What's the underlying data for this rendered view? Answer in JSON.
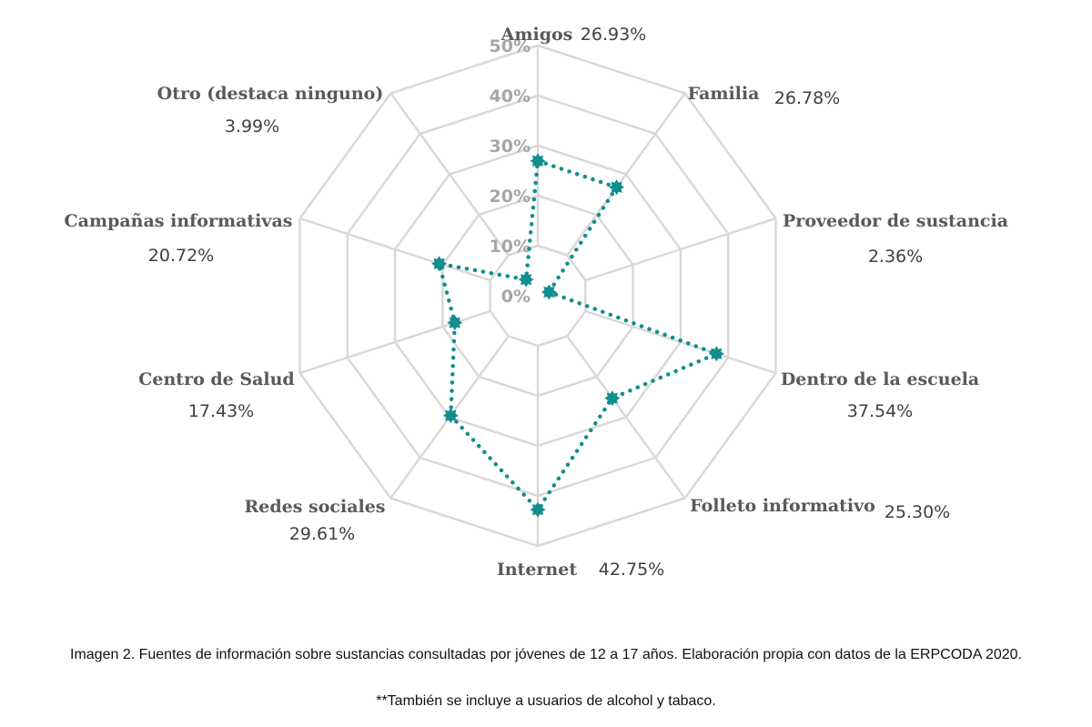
{
  "chart_data": {
    "type": "radar",
    "categories": [
      "Amigos",
      "Familia",
      "Proveedor de sustancia",
      "Dentro de la escuela",
      "Folleto informativo",
      "Internet",
      "Redes sociales",
      "Centro de Salud",
      "Campañas informativas",
      "Otro (destaca ninguno)"
    ],
    "values": [
      26.93,
      26.78,
      2.36,
      37.54,
      25.3,
      42.75,
      29.61,
      17.43,
      20.72,
      3.99
    ],
    "value_labels": [
      "26.93%",
      "26.78%",
      "2.36%",
      "37.54%",
      "25.30%",
      "42.75%",
      "29.61%",
      "17.43%",
      "20.72%",
      "3.99%"
    ],
    "rlim": [
      0,
      50
    ],
    "ticks": [
      0,
      10,
      20,
      30,
      40,
      50
    ],
    "tick_labels": [
      "0%",
      "10%",
      "20%",
      "30%",
      "40%",
      "50%"
    ],
    "series_color": "#138e8e",
    "grid_color": "#d9d9d9"
  },
  "caption": {
    "line1": "Imagen 2. Fuentes de información sobre sustancias consultadas por jóvenes de 12 a 17 años. Elaboración propia con datos de la ERPCODA 2020.",
    "line2": "**También se incluye a usuarios de alcohol y tabaco."
  }
}
